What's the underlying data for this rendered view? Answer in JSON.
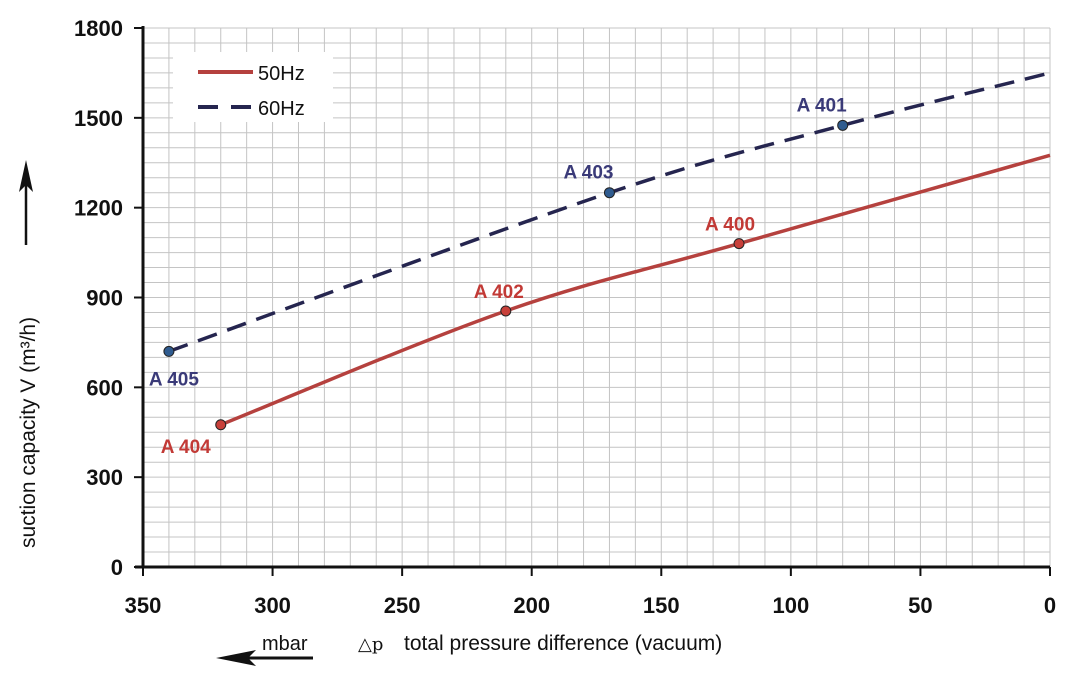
{
  "chart_data": {
    "type": "line",
    "xlabel_symbol": "△p",
    "xlabel": "total pressure difference (vacuum)",
    "xunit": "mbar",
    "ylabel": "suction capacity V (m³/h)",
    "xlim": [
      350,
      0
    ],
    "ylim": [
      0,
      1800
    ],
    "x_reversed": true,
    "xticks": [
      350,
      300,
      250,
      200,
      150,
      100,
      50,
      0
    ],
    "yticks": [
      0,
      300,
      600,
      900,
      1200,
      1500,
      1800
    ],
    "grid": true,
    "legend_position": "top-left",
    "series": [
      {
        "name": "50Hz",
        "color": "#b5413e",
        "style": "solid",
        "x": [
          320,
          210,
          120,
          0
        ],
        "y": [
          475,
          855,
          1080,
          1375
        ]
      },
      {
        "name": "60Hz",
        "color": "#25254f",
        "style": "dashed",
        "x": [
          340,
          170,
          80,
          0
        ],
        "y": [
          720,
          1250,
          1475,
          1650
        ]
      }
    ],
    "annotations": [
      {
        "text": "A 404",
        "x": 320,
        "y": 475,
        "series": "50Hz"
      },
      {
        "text": "A 402",
        "x": 210,
        "y": 855,
        "series": "50Hz"
      },
      {
        "text": "A 400",
        "x": 120,
        "y": 1080,
        "series": "50Hz"
      },
      {
        "text": "A 405",
        "x": 340,
        "y": 720,
        "series": "60Hz"
      },
      {
        "text": "A 403",
        "x": 170,
        "y": 1250,
        "series": "60Hz"
      },
      {
        "text": "A 401",
        "x": 80,
        "y": 1475,
        "series": "60Hz"
      }
    ]
  }
}
